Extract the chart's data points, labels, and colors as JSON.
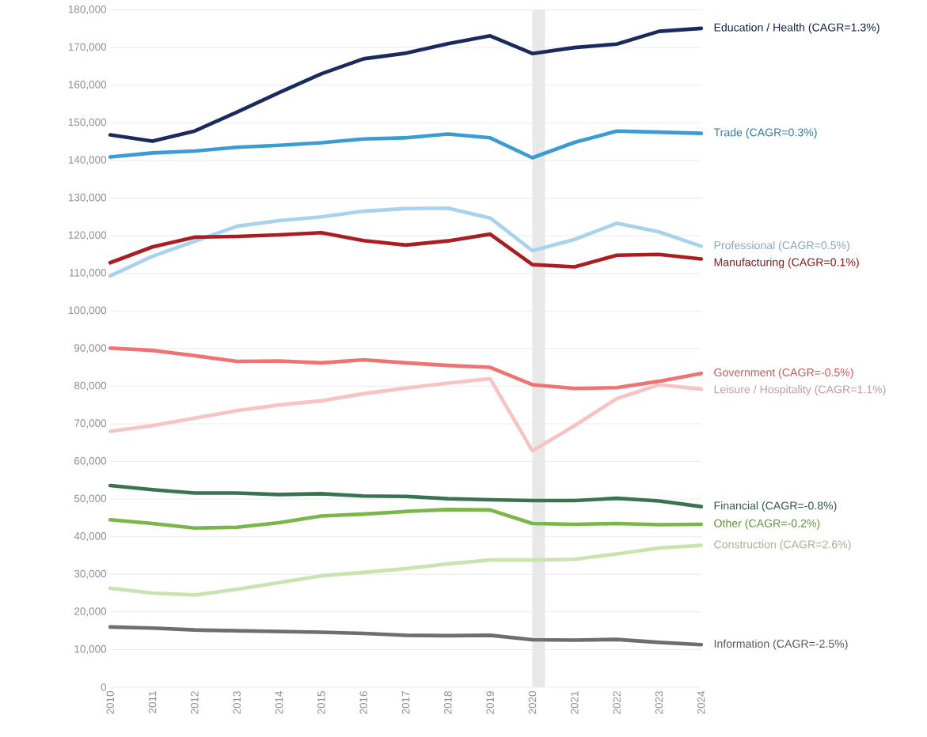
{
  "chart_data": {
    "type": "line",
    "x": [
      2010,
      2011,
      2012,
      2013,
      2014,
      2015,
      2016,
      2017,
      2018,
      2019,
      2020,
      2021,
      2022,
      2023,
      2024
    ],
    "xlim": [
      2010,
      2024
    ],
    "xticks": [
      2010,
      2011,
      2012,
      2013,
      2014,
      2015,
      2016,
      2017,
      2018,
      2019,
      2020,
      2021,
      2022,
      2023,
      2024
    ],
    "ylim": [
      0,
      180000
    ],
    "yticks": [
      {
        "value": 0,
        "label": "0"
      },
      {
        "value": 10000,
        "label": "10,000"
      },
      {
        "value": 20000,
        "label": "20,000"
      },
      {
        "value": 30000,
        "label": "30,000"
      },
      {
        "value": 40000,
        "label": "40,000"
      },
      {
        "value": 50000,
        "label": "50,000"
      },
      {
        "value": 60000,
        "label": "60,000"
      },
      {
        "value": 70000,
        "label": "70,000"
      },
      {
        "value": 80000,
        "label": "80,000"
      },
      {
        "value": 90000,
        "label": "90,000"
      },
      {
        "value": 100000,
        "label": "100,000"
      },
      {
        "value": 110000,
        "label": "110,000"
      },
      {
        "value": 120000,
        "label": "120,000"
      },
      {
        "value": 130000,
        "label": "130,000"
      },
      {
        "value": 140000,
        "label": "140,000"
      },
      {
        "value": 150000,
        "label": "150,000"
      },
      {
        "value": 160000,
        "label": "160,000"
      },
      {
        "value": 170000,
        "label": "170,000"
      },
      {
        "value": 180000,
        "label": "180,000"
      }
    ],
    "grid": "y",
    "bands": [
      {
        "axis": "x",
        "from": 2020,
        "to": 2020.3,
        "color": "#e8e8e8"
      }
    ],
    "series": [
      {
        "name": "Education / Health (CAGR=1.3%)",
        "color": "#1b2a5e",
        "values": [
          146800,
          145100,
          147800,
          152800,
          158000,
          163000,
          167000,
          168500,
          171000,
          173100,
          168400,
          170000,
          170900,
          174300,
          175100
        ]
      },
      {
        "name": "Trade (CAGR=0.3%)",
        "color": "#3a9bd5",
        "values": [
          140900,
          142000,
          142500,
          143500,
          144000,
          144700,
          145700,
          146000,
          147000,
          146000,
          140700,
          144800,
          147800,
          147500,
          147200
        ]
      },
      {
        "name": "Professional (CAGR=0.5%)",
        "color": "#a9d3ec",
        "values": [
          109300,
          114500,
          118500,
          122500,
          124000,
          125000,
          126500,
          127200,
          127300,
          124700,
          116000,
          119000,
          123300,
          121000,
          117200
        ]
      },
      {
        "name": "Manufacturing (CAGR=0.1%)",
        "color": "#a91e22",
        "values": [
          112800,
          117000,
          119600,
          119800,
          120200,
          120800,
          118700,
          117500,
          118600,
          120400,
          112300,
          111700,
          114800,
          115000,
          113800
        ]
      },
      {
        "name": "Government (CAGR=-0.5%)",
        "color": "#f07373",
        "values": [
          90100,
          89500,
          88100,
          86600,
          86700,
          86200,
          87000,
          86200,
          85500,
          85000,
          80400,
          79400,
          79600,
          81300,
          83400
        ]
      },
      {
        "name": "Leisure / Hospitality (CAGR=1.1%)",
        "color": "#f7c3c3",
        "values": [
          68000,
          69500,
          71500,
          73500,
          75000,
          76100,
          78000,
          79500,
          80800,
          82000,
          62800,
          69500,
          76700,
          80400,
          79200
        ]
      },
      {
        "name": "Financial (CAGR=-0.8%)",
        "color": "#3a7350",
        "values": [
          53600,
          52500,
          51600,
          51600,
          51200,
          51400,
          50800,
          50700,
          50100,
          49800,
          49600,
          49600,
          50200,
          49500,
          48000
        ]
      },
      {
        "name": "Other (CAGR=-0.2%)",
        "color": "#7ab648",
        "values": [
          44500,
          43500,
          42300,
          42500,
          43700,
          45500,
          46000,
          46700,
          47200,
          47100,
          43500,
          43300,
          43500,
          43200,
          43300
        ]
      },
      {
        "name": "Construction (CAGR=2.6%)",
        "color": "#c9e4b0",
        "values": [
          26300,
          25000,
          24500,
          26000,
          27800,
          29600,
          30500,
          31500,
          32800,
          33800,
          33800,
          34000,
          35400,
          37000,
          37700
        ]
      },
      {
        "name": "Information (CAGR=-2.5%)",
        "color": "#6e6e6e",
        "values": [
          16000,
          15700,
          15200,
          15000,
          14800,
          14600,
          14300,
          13800,
          13700,
          13800,
          12600,
          12500,
          12700,
          11900,
          11300
        ]
      }
    ]
  }
}
